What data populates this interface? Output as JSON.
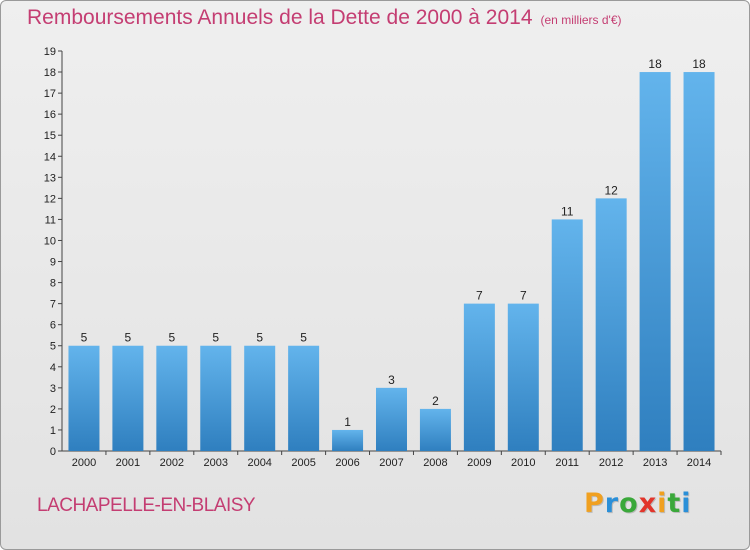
{
  "header": {
    "title": "Remboursements Annuels de la Dette de 2000 à 2014",
    "subtitle": "(en milliers d'€)"
  },
  "commune_name": "LACHAPELLE-EN-BLAISY",
  "logo": {
    "text": "Proxiti",
    "letter_colors": [
      "#f0a020",
      "#2a8fd8",
      "#3aa83a",
      "#e2352b",
      "#f0a020",
      "#3aa83a",
      "#2a8fd8"
    ]
  },
  "colors": {
    "title": "#c43d72",
    "bar_light": "#63b4ec",
    "bar_dark": "#2f7fbf"
  },
  "chart_data": {
    "type": "bar",
    "title": "Remboursements Annuels de la Dette de 2000 à 2014",
    "xlabel": "",
    "ylabel": "",
    "categories": [
      "2000",
      "2001",
      "2002",
      "2003",
      "2004",
      "2005",
      "2006",
      "2007",
      "2008",
      "2009",
      "2010",
      "2011",
      "2012",
      "2013",
      "2014"
    ],
    "values": [
      5,
      5,
      5,
      5,
      5,
      5,
      1,
      3,
      2,
      7,
      7,
      11,
      12,
      18,
      18
    ],
    "ylim": [
      0,
      19
    ],
    "yticks": [
      0,
      1,
      2,
      3,
      4,
      5,
      6,
      7,
      8,
      9,
      10,
      11,
      12,
      13,
      14,
      15,
      16,
      17,
      18,
      19
    ],
    "grid": false,
    "legend": "none"
  }
}
